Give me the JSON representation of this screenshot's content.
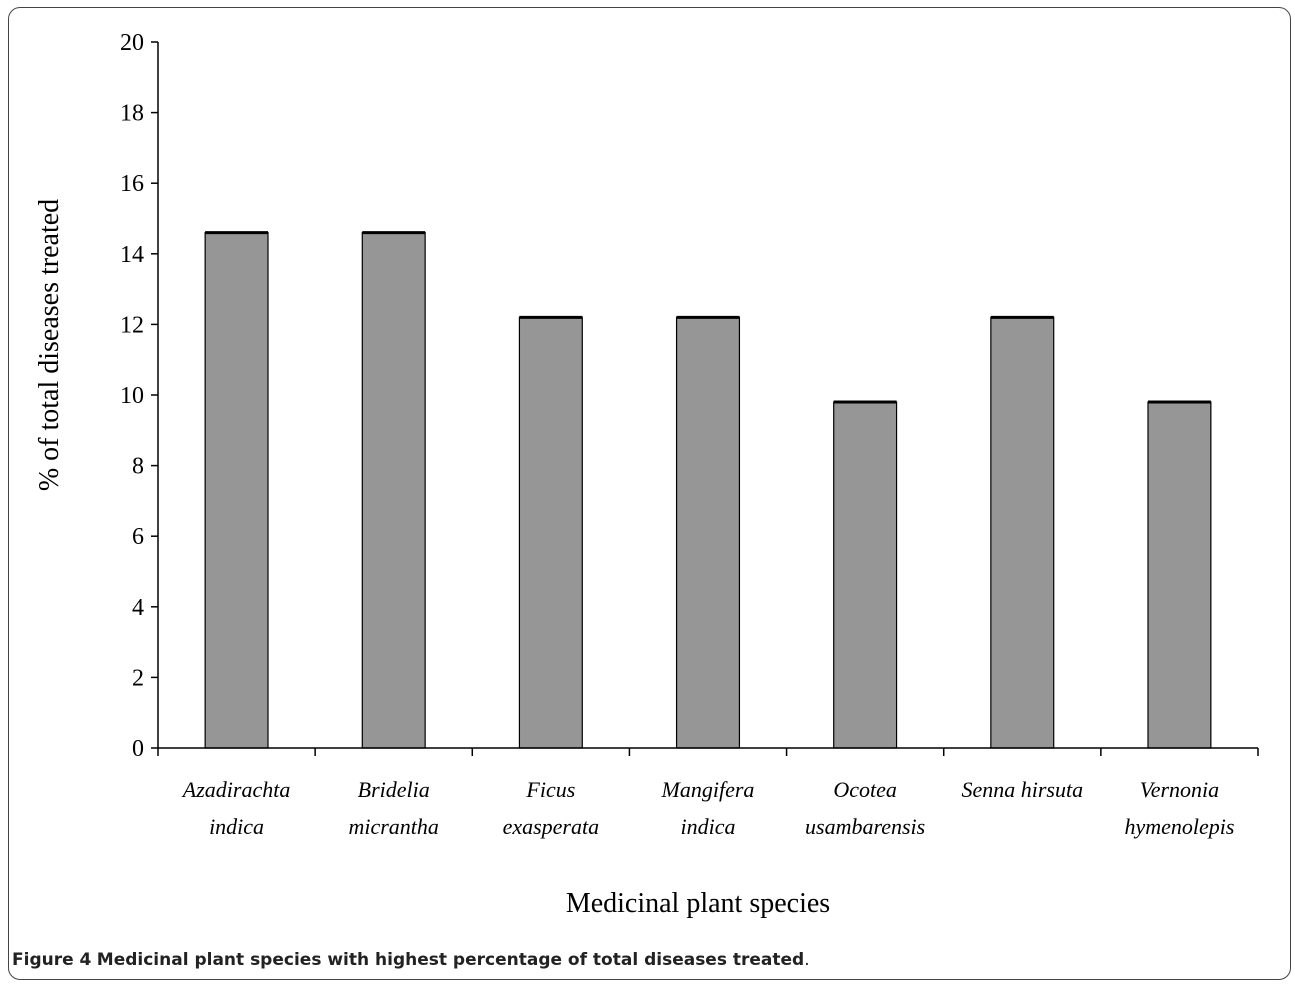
{
  "chart_data": {
    "type": "bar",
    "categories": [
      [
        "Azadirachta",
        "indica"
      ],
      [
        "Bridelia",
        "micrantha"
      ],
      [
        "Ficus",
        "exasperata"
      ],
      [
        "Mangifera",
        "indica"
      ],
      [
        "Ocotea",
        "usambarensis"
      ],
      [
        "Senna hirsuta"
      ],
      [
        "Vernonia",
        "hymenolepis"
      ]
    ],
    "values": [
      14.6,
      14.6,
      12.2,
      12.2,
      9.8,
      12.2,
      9.8
    ],
    "xlabel": "Medicinal plant species",
    "ylabel": "% of total diseases treated",
    "ylim": [
      0,
      20
    ],
    "yticks": [
      0,
      2,
      4,
      6,
      8,
      10,
      12,
      14,
      16,
      18,
      20
    ],
    "bar_color": "#969696",
    "grid": false,
    "legend": "none"
  },
  "caption": {
    "label": "Figure 4",
    "text": "Medicinal plant species with highest percentage of total diseases treated",
    "trailing": "."
  }
}
